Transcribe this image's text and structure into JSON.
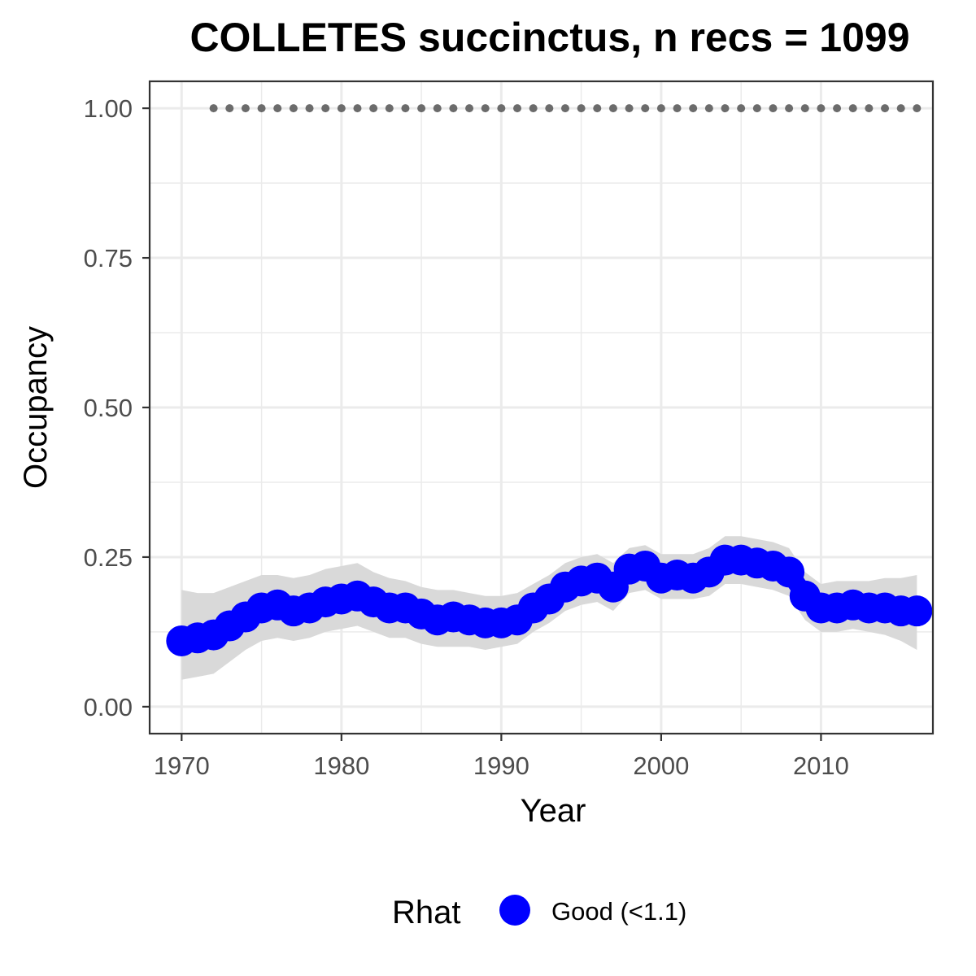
{
  "chart_data": {
    "type": "line",
    "title": "COLLETES succinctus, n recs = 1099",
    "xlabel": "Year",
    "ylabel": "Occupancy",
    "xlim": [
      1968,
      2017
    ],
    "ylim": [
      -0.045,
      1.045
    ],
    "x_ticks": [
      1970,
      1980,
      1990,
      2000,
      2010
    ],
    "x_tick_labels": [
      "1970",
      "1980",
      "1990",
      "2000",
      "2010"
    ],
    "y_ticks": [
      0,
      0.25,
      0.5,
      0.75,
      1
    ],
    "y_tick_labels": [
      "0.00",
      "0.25",
      "0.50",
      "0.75",
      "1.00"
    ],
    "grid": true,
    "legend_position": "bottom",
    "legend_title": "Rhat",
    "legend_label": "Good (<1.1)",
    "colors": {
      "series": "#0000ff",
      "band": "#d9d9d9",
      "reference_dots": "#6b6b6b",
      "grid": "#ebebeb",
      "panel_border": "#333333"
    },
    "x": [
      1970,
      1971,
      1972,
      1973,
      1974,
      1975,
      1976,
      1977,
      1978,
      1979,
      1980,
      1981,
      1982,
      1983,
      1984,
      1985,
      1986,
      1987,
      1988,
      1989,
      1990,
      1991,
      1992,
      1993,
      1994,
      1995,
      1996,
      1997,
      1998,
      1999,
      2000,
      2001,
      2002,
      2003,
      2004,
      2005,
      2006,
      2007,
      2008,
      2009,
      2010,
      2011,
      2012,
      2013,
      2014,
      2015,
      2016
    ],
    "series": [
      {
        "values": [
          0.11,
          0.115,
          0.12,
          0.135,
          0.15,
          0.165,
          0.17,
          0.16,
          0.165,
          0.175,
          0.18,
          0.185,
          0.175,
          0.165,
          0.165,
          0.155,
          0.145,
          0.15,
          0.145,
          0.14,
          0.14,
          0.145,
          0.165,
          0.18,
          0.2,
          0.21,
          0.215,
          0.2,
          0.23,
          0.235,
          0.215,
          0.22,
          0.215,
          0.225,
          0.245,
          0.245,
          0.24,
          0.235,
          0.225,
          0.185,
          0.165,
          0.165,
          0.17,
          0.165,
          0.165,
          0.16,
          0.16
        ],
        "lower": [
          0.045,
          0.05,
          0.055,
          0.075,
          0.095,
          0.11,
          0.115,
          0.11,
          0.115,
          0.125,
          0.13,
          0.135,
          0.125,
          0.115,
          0.115,
          0.105,
          0.1,
          0.1,
          0.1,
          0.095,
          0.1,
          0.105,
          0.125,
          0.14,
          0.16,
          0.17,
          0.175,
          0.16,
          0.19,
          0.195,
          0.18,
          0.18,
          0.18,
          0.185,
          0.205,
          0.205,
          0.2,
          0.195,
          0.185,
          0.145,
          0.125,
          0.125,
          0.13,
          0.125,
          0.12,
          0.11,
          0.095
        ],
        "upper": [
          0.195,
          0.19,
          0.19,
          0.2,
          0.21,
          0.22,
          0.22,
          0.215,
          0.22,
          0.23,
          0.235,
          0.24,
          0.225,
          0.215,
          0.21,
          0.2,
          0.195,
          0.195,
          0.19,
          0.185,
          0.185,
          0.19,
          0.205,
          0.22,
          0.24,
          0.25,
          0.255,
          0.24,
          0.265,
          0.27,
          0.255,
          0.255,
          0.255,
          0.265,
          0.285,
          0.285,
          0.28,
          0.275,
          0.265,
          0.225,
          0.205,
          0.21,
          0.21,
          0.21,
          0.215,
          0.215,
          0.22
        ]
      }
    ],
    "reference_dots": {
      "y": 1,
      "x": [
        1972,
        1973,
        1974,
        1975,
        1976,
        1977,
        1978,
        1979,
        1980,
        1981,
        1982,
        1983,
        1984,
        1985,
        1986,
        1987,
        1988,
        1989,
        1990,
        1991,
        1992,
        1993,
        1994,
        1995,
        1996,
        1997,
        1998,
        1999,
        2000,
        2001,
        2002,
        2003,
        2004,
        2005,
        2006,
        2007,
        2008,
        2009,
        2010,
        2011,
        2012,
        2013,
        2014,
        2015,
        2016
      ]
    }
  }
}
